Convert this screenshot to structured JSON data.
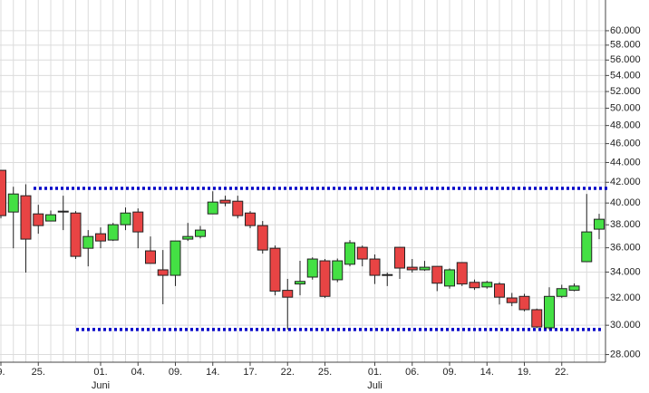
{
  "chart_data": {
    "type": "candlestick",
    "categories": [
      "9.",
      null,
      null,
      "25.",
      null,
      null,
      null,
      null,
      "01.",
      null,
      null,
      "04.",
      null,
      null,
      "09.",
      null,
      null,
      "14.",
      null,
      null,
      "17.",
      null,
      null,
      "22.",
      null,
      null,
      "25.",
      null,
      null,
      null,
      "01.",
      null,
      null,
      "06.",
      null,
      null,
      "09.",
      null,
      null,
      "14.",
      null,
      null,
      "19.",
      null,
      null,
      "22.",
      null,
      null,
      null
    ],
    "months": [
      null,
      null,
      null,
      null,
      null,
      null,
      null,
      null,
      "Juni",
      null,
      null,
      null,
      null,
      null,
      null,
      null,
      null,
      null,
      null,
      null,
      null,
      null,
      null,
      null,
      null,
      null,
      null,
      null,
      null,
      null,
      "Juli",
      null,
      null,
      null,
      null,
      null,
      null,
      null,
      null,
      null,
      null,
      null,
      null,
      null,
      null,
      null,
      null,
      null,
      null
    ],
    "open": [
      43200,
      39160,
      40690,
      38990,
      38340,
      39160,
      39070,
      35960,
      37210,
      36660,
      38010,
      39160,
      35740,
      34180,
      33740,
      36740,
      36970,
      38990,
      40260,
      40170,
      39070,
      37930,
      35960,
      32570,
      33060,
      33600,
      34910,
      33390,
      34630,
      36040,
      35060,
      33800,
      36040,
      34390,
      34180,
      34460,
      32900,
      34770,
      33190,
      32830,
      33060,
      31990,
      32110,
      31120,
      29820,
      32110,
      32570,
      34840,
      37610
    ],
    "high": [
      43200,
      41560,
      41800,
      39830,
      39300,
      40690,
      39240,
      37530,
      37770,
      38170,
      39580,
      39490,
      36970,
      35810,
      36580,
      38170,
      37900,
      41120,
      40690,
      40690,
      39240,
      38340,
      36190,
      33460,
      34910,
      35200,
      35060,
      35100,
      36660,
      36190,
      35440,
      33960,
      36040,
      35060,
      34900,
      34460,
      34300,
      34770,
      33400,
      33300,
      33200,
      32370,
      32300,
      31200,
      32800,
      33000,
      33100,
      40860,
      38990
    ],
    "low": [
      38580,
      35960,
      33960,
      37210,
      38340,
      37530,
      35060,
      34460,
      35960,
      36580,
      37530,
      35960,
      34700,
      31520,
      32900,
      36580,
      36800,
      38990,
      39700,
      38580,
      37700,
      35510,
      32190,
      29700,
      32190,
      33400,
      31990,
      33200,
      34460,
      34460,
      33060,
      32900,
      33460,
      33960,
      34100,
      32510,
      32700,
      32900,
      32600,
      32700,
      31500,
      31380,
      31000,
      29800,
      29700,
      32000,
      32500,
      34840,
      36740
    ],
    "close": [
      38830,
      40860,
      36740,
      37930,
      38910,
      39240,
      35280,
      36970,
      36580,
      38010,
      39070,
      37370,
      34700,
      33740,
      36580,
      36970,
      37530,
      40090,
      40000,
      38830,
      37930,
      35810,
      32510,
      32050,
      33260,
      35060,
      32110,
      34910,
      36430,
      35060,
      33740,
      33740,
      34320,
      34180,
      34390,
      33120,
      34180,
      33060,
      32770,
      33190,
      32050,
      31640,
      31120,
      29880,
      32110,
      32700,
      32900,
      37370,
      38500
    ],
    "up_color": "#44e044",
    "down_color": "#e84444",
    "log_scale": true,
    "grid": true,
    "ylim": [
      27500,
      64500
    ],
    "yticks": [
      {
        "value": 28000,
        "label": "28.000"
      },
      {
        "value": 30000,
        "label": "30.000"
      },
      {
        "value": 32000,
        "label": "32.000"
      },
      {
        "value": 34000,
        "label": "34.000"
      },
      {
        "value": 36000,
        "label": "36.000"
      },
      {
        "value": 38000,
        "label": "38.000"
      },
      {
        "value": 40000,
        "label": "40.000"
      },
      {
        "value": 42000,
        "label": "42.000"
      },
      {
        "value": 44000,
        "label": "44.000"
      },
      {
        "value": 46000,
        "label": "46.000"
      },
      {
        "value": 48000,
        "label": "48.000"
      },
      {
        "value": 50000,
        "label": "50.000"
      },
      {
        "value": 52000,
        "label": "52.000"
      },
      {
        "value": 54000,
        "label": "54.000"
      },
      {
        "value": 56000,
        "label": "56.000"
      },
      {
        "value": 58000,
        "label": "58.000"
      },
      {
        "value": 60000,
        "label": "60.000"
      }
    ],
    "hlines": [
      {
        "value": 41400,
        "color": "#0000c8"
      },
      {
        "value": 29700,
        "color": "#0000c8"
      }
    ]
  }
}
